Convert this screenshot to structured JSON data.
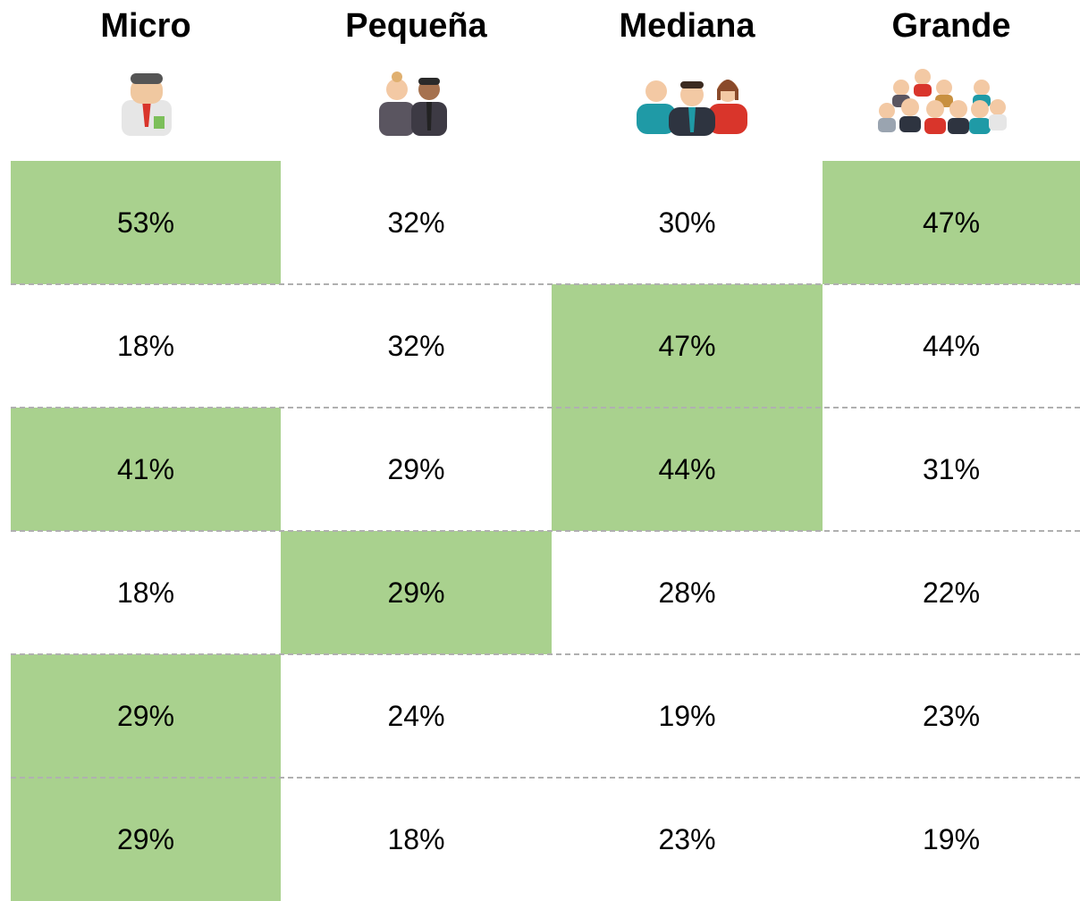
{
  "table": {
    "headers": [
      "Micro",
      "Pequeña",
      "Mediana",
      "Grande"
    ],
    "rows": [
      [
        "53%",
        "32%",
        "30%",
        "47%"
      ],
      [
        "18%",
        "32%",
        "47%",
        "44%"
      ],
      [
        "41%",
        "29%",
        "44%",
        "31%"
      ],
      [
        "18%",
        "29%",
        "28%",
        "22%"
      ],
      [
        "29%",
        "24%",
        "19%",
        "23%"
      ],
      [
        "29%",
        "18%",
        "23%",
        "19%"
      ]
    ],
    "highlight": [
      [
        true,
        false,
        false,
        true
      ],
      [
        false,
        false,
        true,
        false
      ],
      [
        true,
        false,
        true,
        false
      ],
      [
        false,
        true,
        false,
        false
      ],
      [
        true,
        false,
        false,
        false
      ],
      [
        true,
        false,
        false,
        false
      ]
    ],
    "highlight_color": "#a9d18e"
  }
}
